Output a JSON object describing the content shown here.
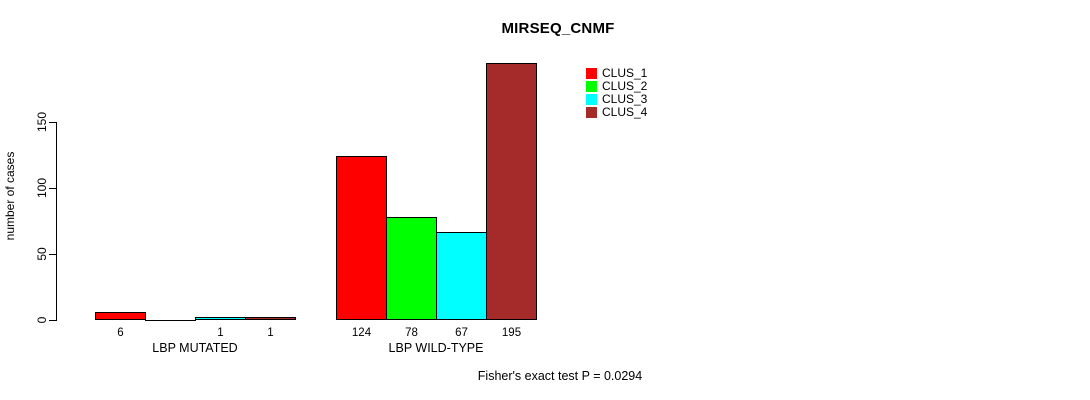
{
  "chart_data": {
    "type": "bar",
    "title": "MIRSEQ_CNMF",
    "ylabel": "number of cases",
    "xlabel": "",
    "categories": [
      "LBP MUTATED",
      "LBP WILD-TYPE"
    ],
    "series": [
      {
        "name": "CLUS_1",
        "color": "#ff0000",
        "values": [
          6,
          124
        ]
      },
      {
        "name": "CLUS_2",
        "color": "#00ff00",
        "values": [
          0,
          78
        ]
      },
      {
        "name": "CLUS_3",
        "color": "#00ffff",
        "values": [
          1,
          67
        ]
      },
      {
        "name": "CLUS_4",
        "color": "#a52a2a",
        "values": [
          1,
          195
        ]
      }
    ],
    "bar_value_labels": [
      [
        "6",
        "",
        "1",
        "1"
      ],
      [
        "124",
        "78",
        "67",
        "195"
      ]
    ],
    "y_ticks": [
      0,
      50,
      100,
      150
    ],
    "ylim": [
      0,
      198
    ],
    "grid": false,
    "legend_position": "top-right-inside",
    "annotation": "Fisher's exact test P = 0.0294"
  }
}
